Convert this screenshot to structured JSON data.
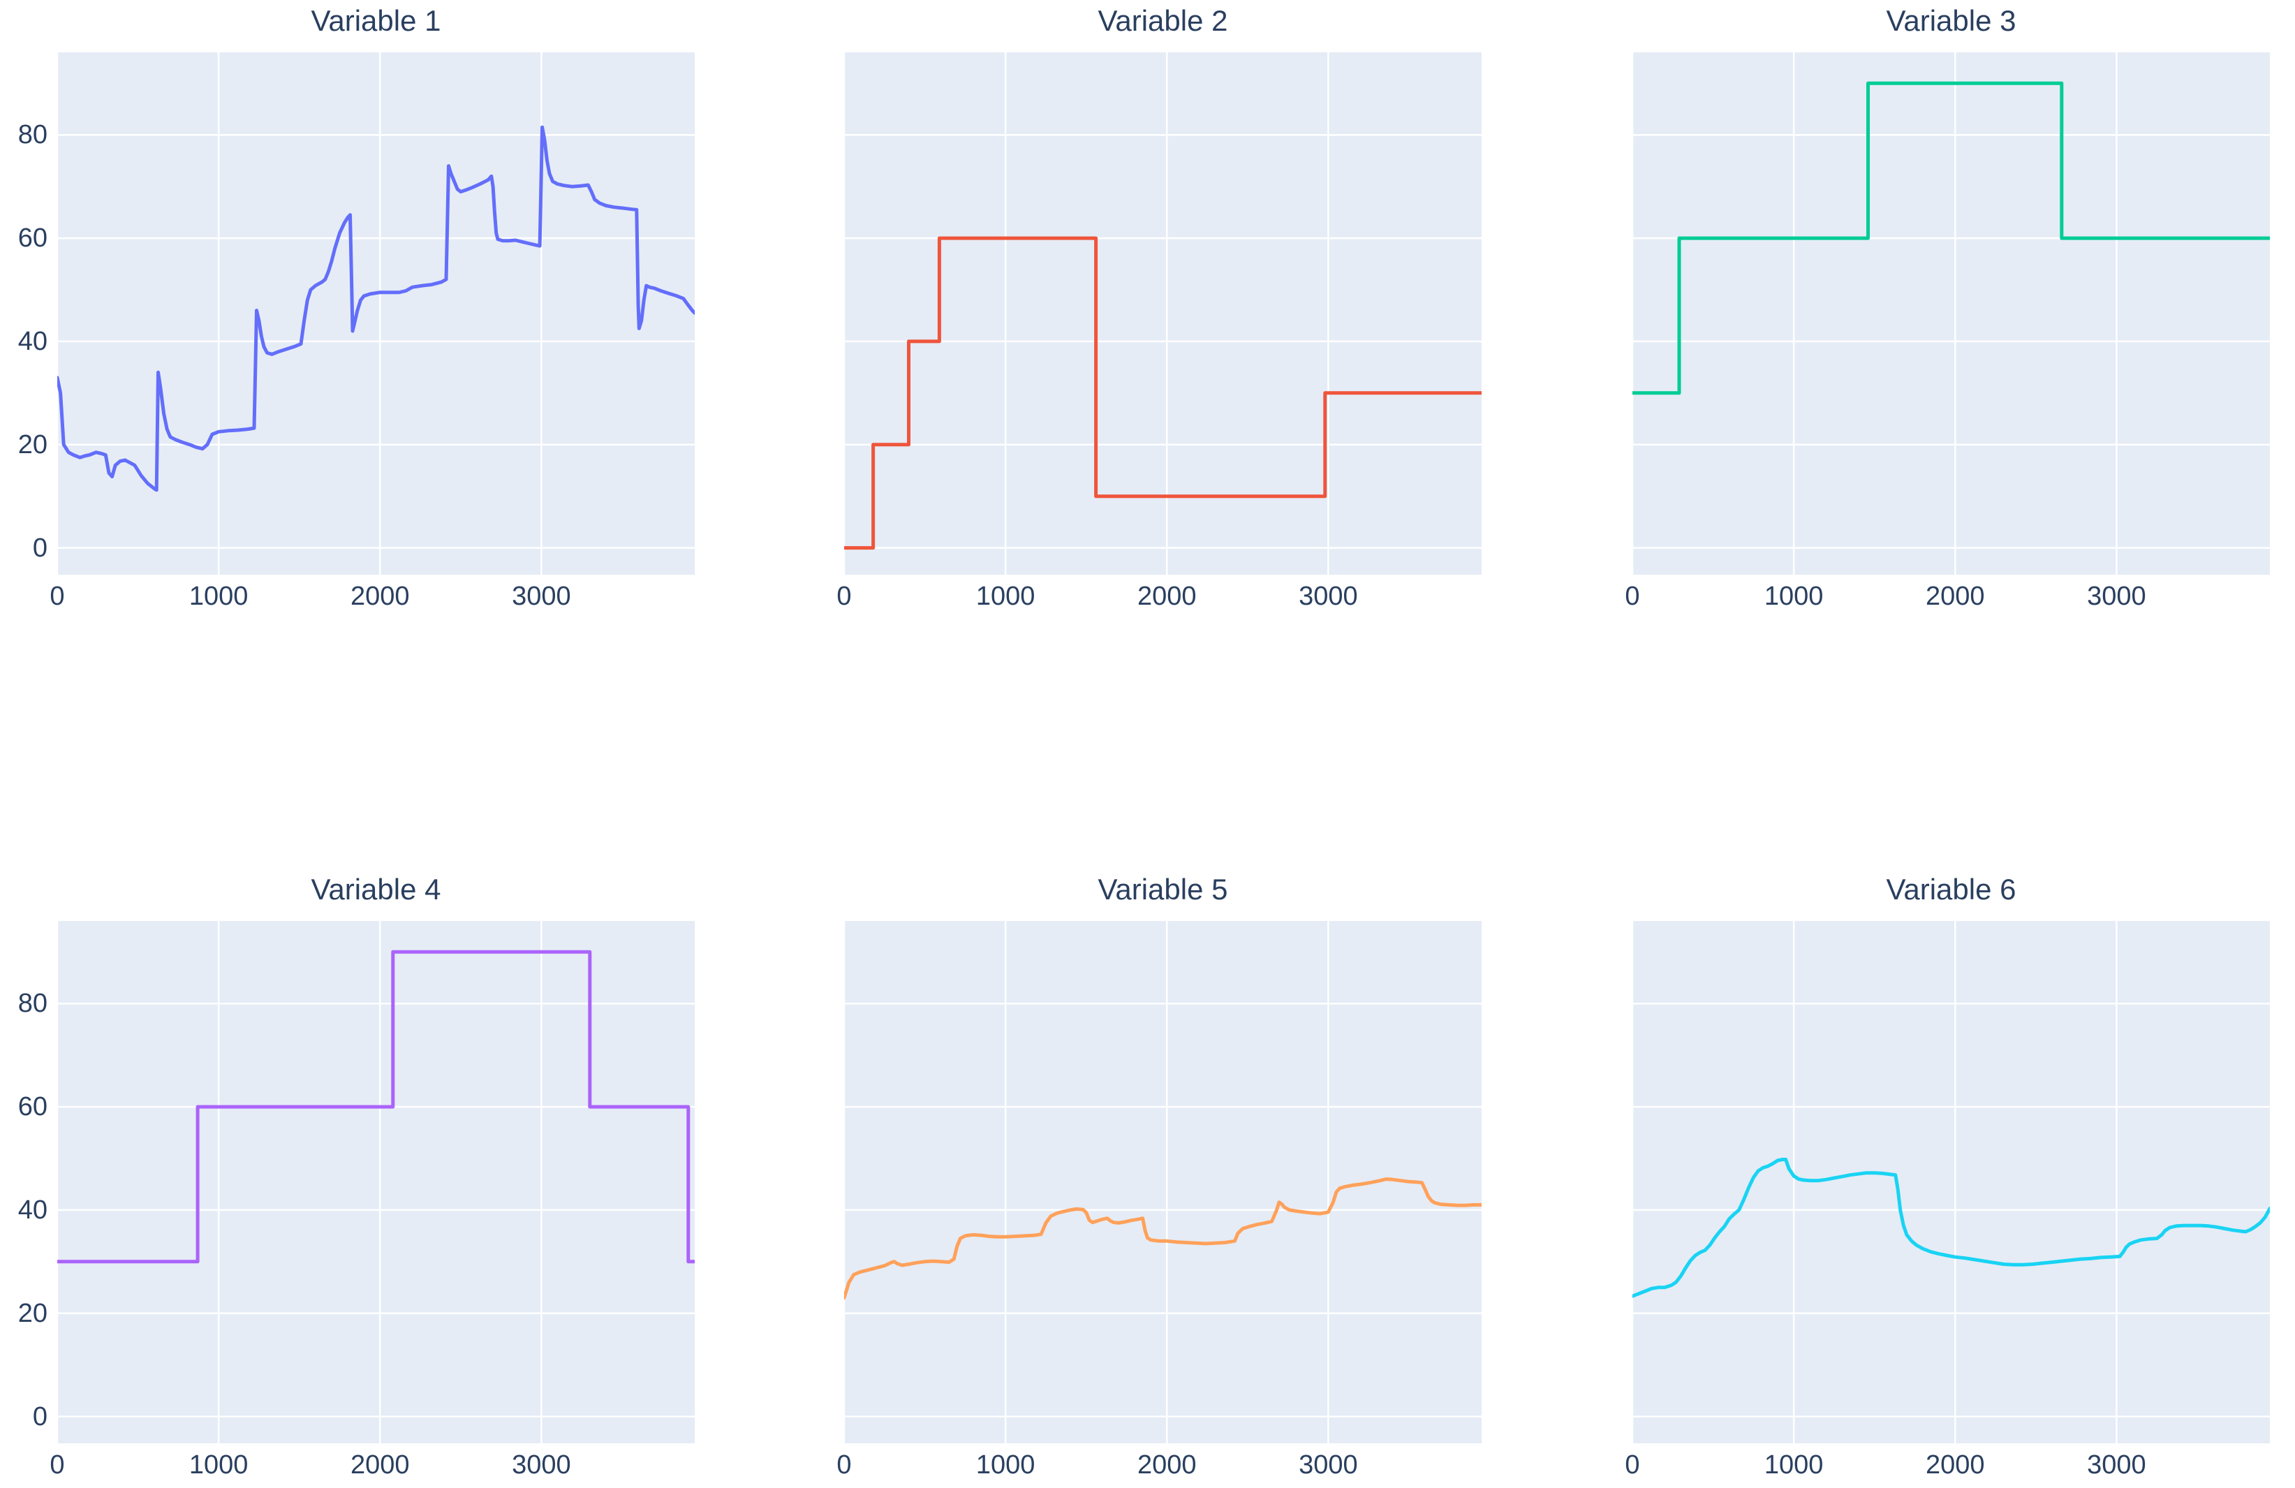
{
  "figure": {
    "plot_background": "#e5ecf6",
    "grid_color": "#ffffff",
    "text_color": "#2a3f5f",
    "x_tick_labels": [
      "0",
      "1000",
      "2000",
      "3000"
    ],
    "x_tick_values": [
      0,
      1000,
      2000,
      3000
    ],
    "y_tick_labels": [
      "0",
      "20",
      "40",
      "60",
      "80"
    ],
    "y_tick_values": [
      0,
      20,
      40,
      60,
      80
    ],
    "x_range": [
      0,
      3950
    ],
    "y_range": [
      -5.2,
      96
    ]
  },
  "chart_data": [
    {
      "type": "line",
      "title": "Variable 1",
      "color": "#636efa",
      "y_axis_labels_visible": true,
      "x": [
        0,
        20,
        40,
        70,
        100,
        140,
        170,
        200,
        240,
        270,
        300,
        320,
        340,
        360,
        390,
        420,
        450,
        480,
        520,
        560,
        600,
        615,
        625,
        640,
        660,
        680,
        700,
        730,
        770,
        820,
        860,
        900,
        930,
        960,
        1000,
        1060,
        1120,
        1180,
        1220,
        1235,
        1250,
        1265,
        1280,
        1300,
        1330,
        1370,
        1420,
        1470,
        1510,
        1530,
        1550,
        1570,
        1600,
        1640,
        1660,
        1680,
        1700,
        1720,
        1750,
        1780,
        1800,
        1815,
        1825,
        1830,
        1845,
        1860,
        1880,
        1900,
        1940,
        2000,
        2060,
        2120,
        2160,
        2200,
        2260,
        2320,
        2380,
        2410,
        2425,
        2440,
        2460,
        2480,
        2500,
        2530,
        2570,
        2620,
        2670,
        2690,
        2700,
        2710,
        2720,
        2730,
        2760,
        2800,
        2840,
        2880,
        2920,
        2960,
        2990,
        3005,
        3020,
        3035,
        3050,
        3070,
        3100,
        3140,
        3190,
        3240,
        3290,
        3310,
        3330,
        3360,
        3400,
        3450,
        3510,
        3560,
        3590,
        3600,
        3605,
        3620,
        3635,
        3650,
        3670,
        3700,
        3740,
        3790,
        3840,
        3880,
        3910,
        3935,
        3950
      ],
      "y": [
        33,
        30,
        20,
        18.5,
        18,
        17.5,
        17.8,
        18,
        18.5,
        18.3,
        18,
        14.5,
        13.8,
        16,
        16.8,
        17,
        16.5,
        16,
        14,
        12.5,
        11.5,
        11.2,
        34,
        31,
        26,
        23,
        21.5,
        21,
        20.5,
        20,
        19.5,
        19.2,
        20,
        22,
        22.5,
        22.7,
        22.8,
        23,
        23.2,
        46,
        44,
        41,
        39,
        37.8,
        37.5,
        38,
        38.5,
        39,
        39.5,
        44,
        48,
        50,
        50.8,
        51.5,
        52,
        53.5,
        55.5,
        58,
        61,
        63,
        64,
        64.5,
        50,
        42,
        44,
        46,
        48,
        48.8,
        49.2,
        49.5,
        49.5,
        49.5,
        49.8,
        50.5,
        50.8,
        51,
        51.5,
        52,
        74,
        72.5,
        71,
        69.5,
        69,
        69.3,
        69.8,
        70.5,
        71.3,
        72,
        70,
        65,
        61,
        59.8,
        59.5,
        59.5,
        59.6,
        59.3,
        59,
        58.7,
        58.5,
        81.5,
        79,
        75,
        72.5,
        71,
        70.5,
        70.2,
        70,
        70.1,
        70.3,
        69,
        67.5,
        66.8,
        66.3,
        66,
        65.8,
        65.6,
        65.5,
        47,
        42.5,
        44,
        48,
        50.8,
        50.5,
        50.3,
        49.8,
        49.3,
        48.8,
        48.3,
        47,
        46,
        45.5
      ]
    },
    {
      "type": "line",
      "title": "Variable 2",
      "color": "#ef553b",
      "y_axis_labels_visible": false,
      "x": [
        0,
        180,
        180,
        400,
        400,
        590,
        590,
        1560,
        1560,
        2980,
        2980,
        3950
      ],
      "y": [
        0,
        0,
        20,
        20,
        40,
        40,
        60,
        60,
        10,
        10,
        30,
        30
      ]
    },
    {
      "type": "line",
      "title": "Variable 3",
      "color": "#00cc96",
      "y_axis_labels_visible": false,
      "x": [
        0,
        290,
        290,
        1460,
        1460,
        2660,
        2660,
        3950
      ],
      "y": [
        30,
        30,
        60,
        60,
        90,
        90,
        60,
        60
      ]
    },
    {
      "type": "line",
      "title": "Variable 4",
      "color": "#ab63fa",
      "y_axis_labels_visible": true,
      "x": [
        0,
        870,
        870,
        2080,
        2080,
        3300,
        3300,
        3910,
        3910,
        3950
      ],
      "y": [
        30,
        30,
        60,
        60,
        90,
        90,
        60,
        60,
        30,
        30
      ]
    },
    {
      "type": "line",
      "title": "Variable 5",
      "color": "#ffa15a",
      "y_axis_labels_visible": false,
      "x": [
        0,
        15,
        30,
        60,
        100,
        150,
        200,
        250,
        290,
        310,
        330,
        360,
        400,
        450,
        500,
        550,
        600,
        650,
        680,
        700,
        720,
        750,
        800,
        850,
        900,
        950,
        1000,
        1060,
        1120,
        1180,
        1220,
        1250,
        1280,
        1320,
        1360,
        1400,
        1440,
        1480,
        1500,
        1520,
        1540,
        1570,
        1600,
        1630,
        1650,
        1670,
        1700,
        1740,
        1780,
        1820,
        1850,
        1865,
        1880,
        1900,
        1950,
        2000,
        2060,
        2120,
        2180,
        2240,
        2300,
        2360,
        2420,
        2440,
        2470,
        2510,
        2560,
        2610,
        2650,
        2680,
        2695,
        2710,
        2730,
        2760,
        2800,
        2850,
        2900,
        2950,
        3000,
        3030,
        3050,
        3070,
        3100,
        3150,
        3200,
        3260,
        3320,
        3360,
        3400,
        3450,
        3500,
        3550,
        3580,
        3600,
        3620,
        3640,
        3660,
        3700,
        3750,
        3800,
        3850,
        3900,
        3950
      ],
      "y": [
        23,
        24.5,
        26,
        27.5,
        28,
        28.4,
        28.8,
        29.2,
        29.8,
        30,
        29.6,
        29.3,
        29.5,
        29.8,
        30,
        30.1,
        30,
        29.9,
        30.5,
        33,
        34.5,
        35,
        35.2,
        35.1,
        34.9,
        34.8,
        34.8,
        34.9,
        35,
        35.1,
        35.3,
        37.5,
        38.8,
        39.4,
        39.7,
        40,
        40.2,
        40.1,
        39.5,
        38,
        37.6,
        37.9,
        38.2,
        38.4,
        37.9,
        37.6,
        37.5,
        37.7,
        38,
        38.2,
        38.4,
        36,
        34.6,
        34.2,
        34,
        34,
        33.8,
        33.7,
        33.6,
        33.5,
        33.6,
        33.7,
        34,
        35.5,
        36.4,
        36.8,
        37.2,
        37.5,
        37.8,
        40,
        41.5,
        41.2,
        40.5,
        40,
        39.8,
        39.6,
        39.4,
        39.3,
        39.6,
        41.5,
        43.5,
        44.2,
        44.5,
        44.8,
        45,
        45.3,
        45.7,
        46,
        45.9,
        45.7,
        45.5,
        45.4,
        45.3,
        44,
        42.6,
        41.8,
        41.4,
        41.1,
        41,
        40.9,
        40.9,
        41,
        41
      ]
    },
    {
      "type": "line",
      "title": "Variable 6",
      "color": "#19d3f3",
      "y_axis_labels_visible": false,
      "x": [
        0,
        40,
        80,
        120,
        160,
        200,
        240,
        270,
        300,
        330,
        360,
        390,
        420,
        450,
        480,
        510,
        540,
        570,
        600,
        630,
        660,
        690,
        720,
        750,
        780,
        810,
        840,
        870,
        900,
        930,
        950,
        970,
        1000,
        1030,
        1060,
        1100,
        1150,
        1200,
        1250,
        1300,
        1350,
        1400,
        1450,
        1500,
        1550,
        1600,
        1630,
        1645,
        1660,
        1680,
        1700,
        1730,
        1760,
        1800,
        1850,
        1900,
        1950,
        2000,
        2060,
        2120,
        2180,
        2240,
        2300,
        2360,
        2420,
        2480,
        2540,
        2600,
        2660,
        2720,
        2780,
        2840,
        2900,
        2960,
        3020,
        3040,
        3060,
        3080,
        3110,
        3150,
        3200,
        3250,
        3280,
        3300,
        3330,
        3370,
        3420,
        3470,
        3520,
        3570,
        3620,
        3670,
        3720,
        3770,
        3800,
        3830,
        3860,
        3890,
        3920,
        3950
      ],
      "y": [
        23.3,
        23.8,
        24.3,
        24.8,
        25,
        25,
        25.4,
        26,
        27.2,
        28.8,
        30.2,
        31.2,
        31.8,
        32.2,
        33.2,
        34.6,
        35.8,
        36.8,
        38.3,
        39.2,
        40,
        42,
        44.3,
        46.3,
        47.6,
        48.2,
        48.5,
        49,
        49.6,
        49.8,
        49.8,
        48,
        46.6,
        46,
        45.8,
        45.7,
        45.7,
        45.9,
        46.2,
        46.5,
        46.8,
        47,
        47.2,
        47.2,
        47.1,
        46.9,
        46.8,
        44,
        40,
        37,
        35.2,
        34,
        33.2,
        32.5,
        31.9,
        31.5,
        31.2,
        30.9,
        30.7,
        30.4,
        30.1,
        29.8,
        29.5,
        29.4,
        29.4,
        29.5,
        29.7,
        29.9,
        30.1,
        30.3,
        30.5,
        30.6,
        30.8,
        30.9,
        31,
        31.8,
        32.8,
        33.4,
        33.8,
        34.2,
        34.4,
        34.5,
        35.2,
        36,
        36.6,
        36.9,
        37,
        37,
        37,
        36.9,
        36.7,
        36.4,
        36.1,
        35.9,
        35.8,
        36.2,
        36.8,
        37.5,
        38.6,
        40.3
      ]
    }
  ]
}
